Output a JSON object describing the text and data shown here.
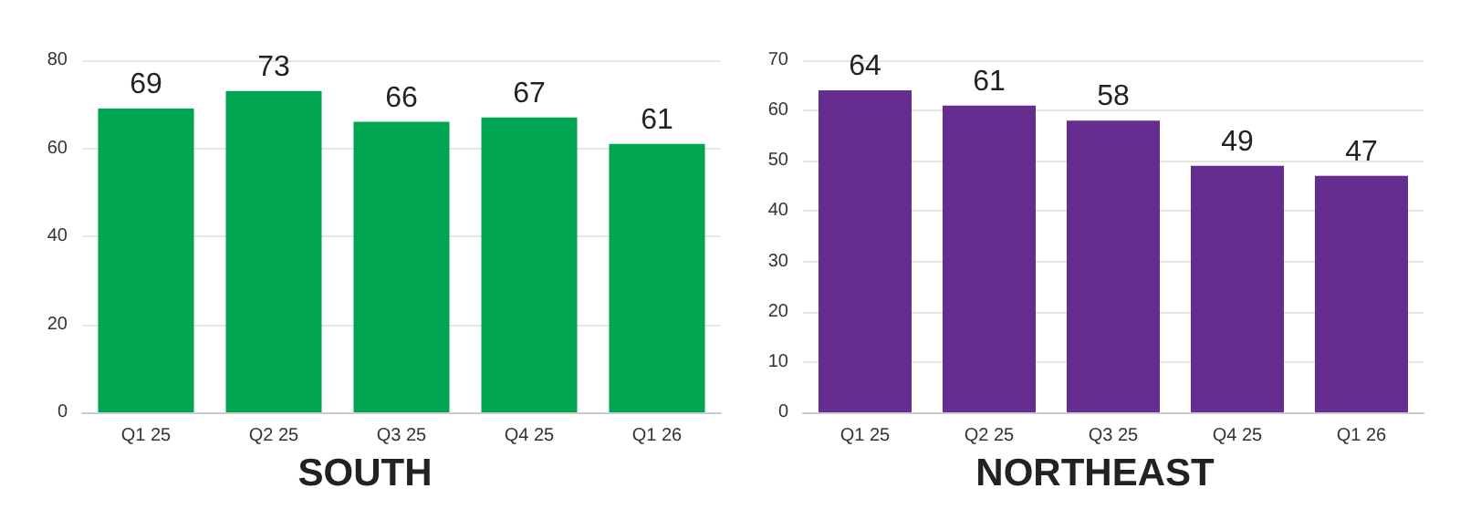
{
  "chart_data": [
    {
      "type": "bar",
      "title": "SOUTH",
      "categories": [
        "Q1 25",
        "Q2 25",
        "Q3 25",
        "Q4 25",
        "Q1 26"
      ],
      "values": [
        69,
        73,
        66,
        67,
        61
      ],
      "color": "#00a651",
      "ylim": [
        0,
        80
      ],
      "yticks": [
        0,
        20,
        40,
        60,
        80
      ],
      "grid": "y",
      "data_labels": true
    },
    {
      "type": "bar",
      "title": "NORTHEAST",
      "categories": [
        "Q1 25",
        "Q2 25",
        "Q3 25",
        "Q4 25",
        "Q1 26"
      ],
      "values": [
        64,
        61,
        58,
        49,
        47
      ],
      "color": "#662d91",
      "ylim": [
        0,
        70
      ],
      "yticks": [
        0,
        10,
        20,
        30,
        40,
        50,
        60,
        70
      ],
      "grid": "y",
      "data_labels": true
    }
  ]
}
